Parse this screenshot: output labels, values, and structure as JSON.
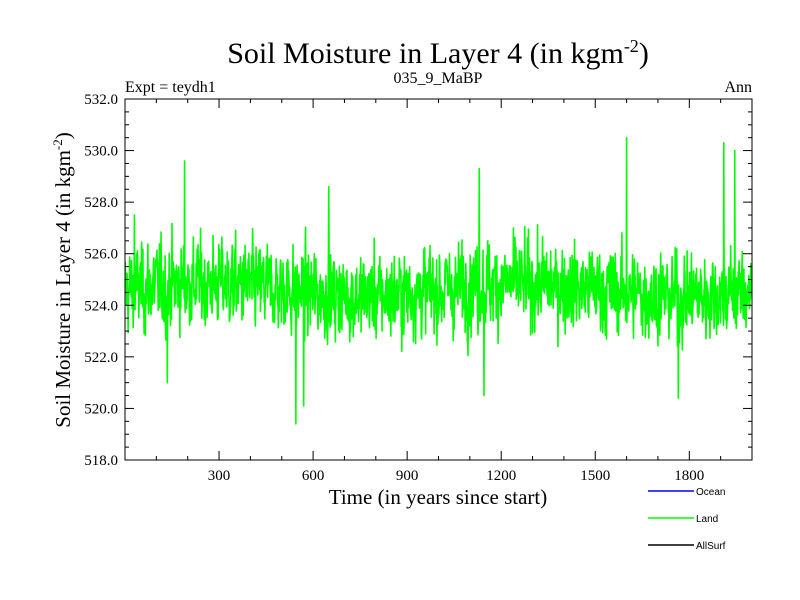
{
  "chart_data": {
    "type": "line",
    "title_main": "Soil Moisture in Layer 4 (in kgm",
    "title_sup": "-2",
    "title_close": ")",
    "subtitle_left": "Expt = teydh1",
    "subtitle_center": "035_9_MaBP",
    "subtitle_right": "Ann",
    "xlabel": "Time (in years since start)",
    "ylabel_main": "Soil Moisture in Layer 4 (in kgm",
    "ylabel_sup": "-2",
    "ylabel_close": ")",
    "xlim": [
      0,
      2000
    ],
    "ylim": [
      518.0,
      532.0
    ],
    "xticks": [
      300,
      600,
      900,
      1200,
      1500,
      1800
    ],
    "xtick_labels": [
      "300",
      "600",
      "900",
      "1200",
      "1500",
      "1800"
    ],
    "yticks": [
      518.0,
      520.0,
      522.0,
      524.0,
      526.0,
      528.0,
      530.0,
      532.0
    ],
    "ytick_labels": [
      "518.0",
      "520.0",
      "522.0",
      "524.0",
      "526.0",
      "528.0",
      "530.0",
      "532.0"
    ],
    "legend": [
      {
        "name": "Ocean",
        "color": "#0000ff"
      },
      {
        "name": "Land",
        "color": "#00ff00"
      },
      {
        "name": "AllSurf",
        "color": "#000000"
      }
    ],
    "series": [
      {
        "name": "Land",
        "color": "#00ff00",
        "n_points": 2000,
        "mean": 524.6,
        "std": 1.4,
        "extremes": [
          {
            "x": 30,
            "y": 527.5
          },
          {
            "x": 135,
            "y": 521.0
          },
          {
            "x": 190,
            "y": 529.6
          },
          {
            "x": 545,
            "y": 519.4
          },
          {
            "x": 570,
            "y": 520.1
          },
          {
            "x": 650,
            "y": 528.6
          },
          {
            "x": 1130,
            "y": 529.3
          },
          {
            "x": 1145,
            "y": 520.5
          },
          {
            "x": 1600,
            "y": 530.5
          },
          {
            "x": 1765,
            "y": 520.4
          },
          {
            "x": 1910,
            "y": 530.3
          },
          {
            "x": 1945,
            "y": 530.0
          }
        ]
      }
    ]
  }
}
